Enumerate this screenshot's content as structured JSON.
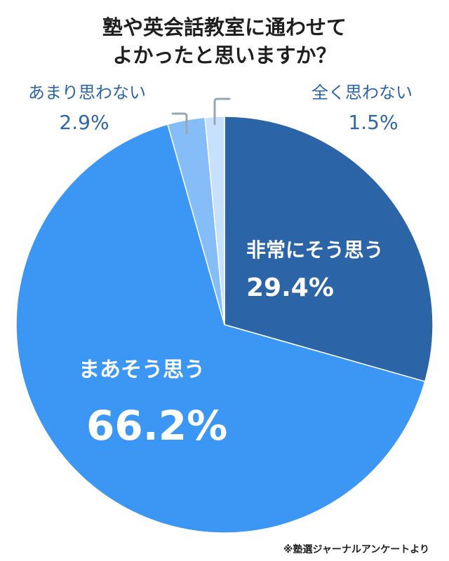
{
  "chart_data": {
    "type": "pie",
    "title_lines": [
      "塾や英会話教室に通わせて",
      "よかったと思いますか？"
    ],
    "start_angle_deg": 0,
    "direction": "clockwise",
    "slices": [
      {
        "label": "非常にそう思う",
        "value": 29.4,
        "value_label": "29.4%",
        "color": "#2c64a8",
        "label_position": "inside"
      },
      {
        "label": "まあそう思う",
        "value": 66.2,
        "value_label": "66.2%",
        "color": "#3b96f4",
        "label_position": "inside"
      },
      {
        "label": "あまり思わない",
        "value": 2.9,
        "value_label": "2.9%",
        "color": "#84bdf7",
        "label_position": "outside-left"
      },
      {
        "label": "全く思わない",
        "value": 1.5,
        "value_label": "1.5%",
        "color": "#c7e0fb",
        "label_position": "outside-right"
      }
    ],
    "legend": "none",
    "source_note": "※塾選ジャーナルアンケートより"
  }
}
